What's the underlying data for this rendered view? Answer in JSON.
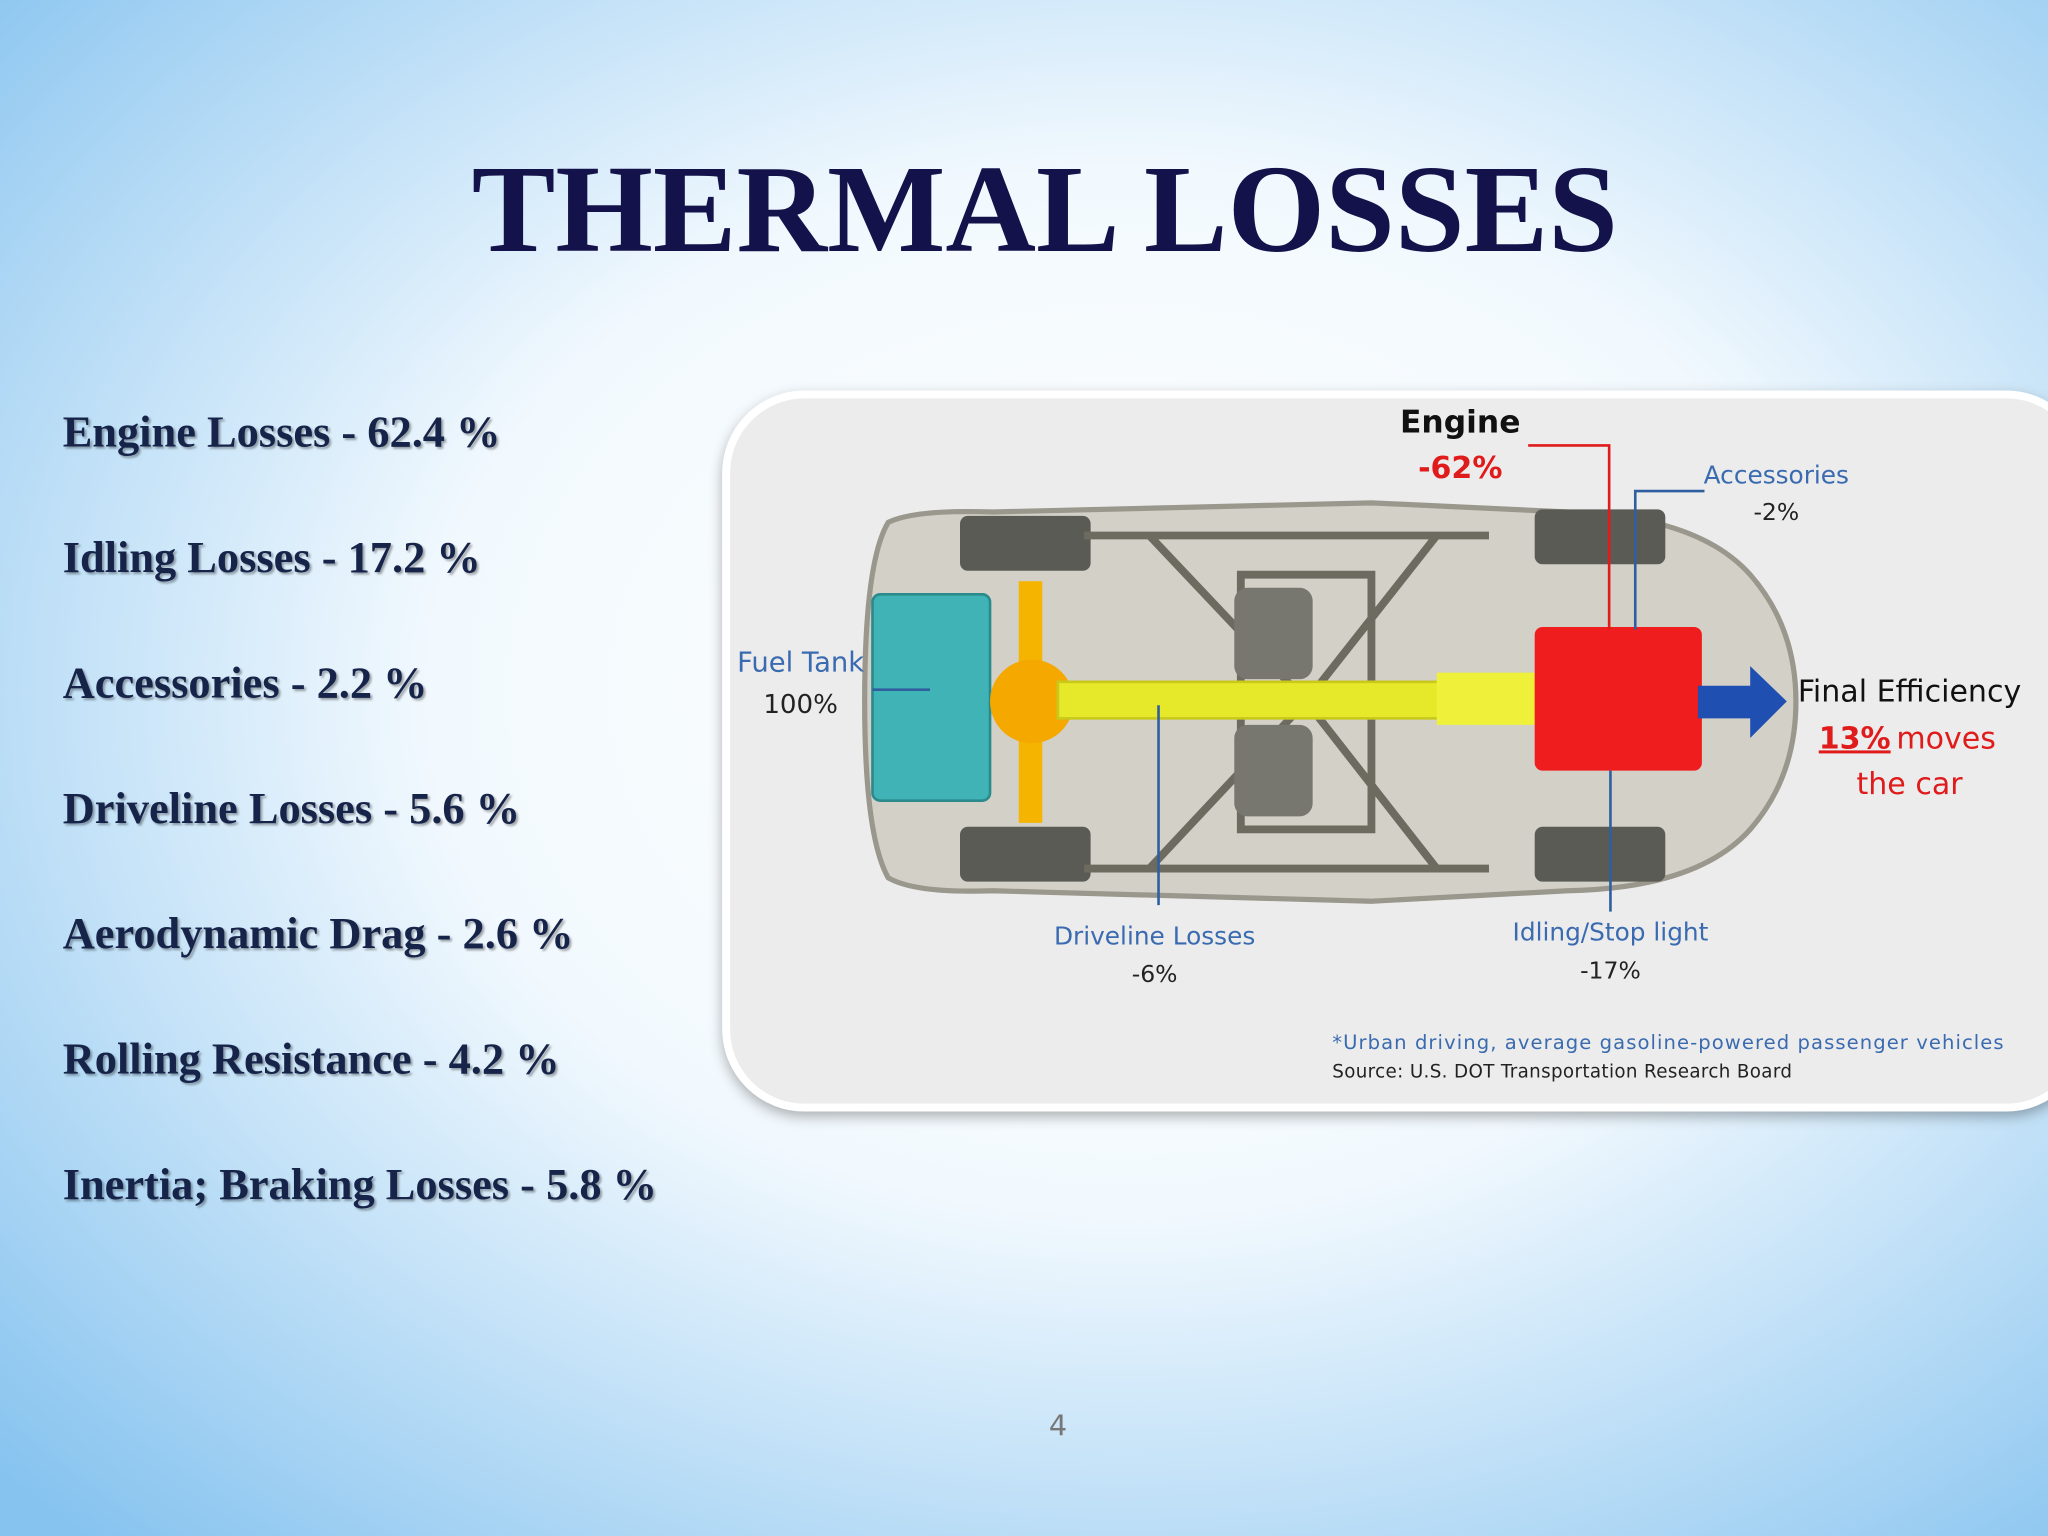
{
  "title": "THERMAL LOSSES",
  "losses": [
    "Engine Losses - 62.4 %",
    "Idling Losses - 17.2 %",
    "Accessories - 2.2 %",
    "Driveline Losses - 5.6 %",
    "Aerodynamic Drag - 2.6 %",
    "Rolling Resistance - 4.2 %",
    "Inertia; Braking Losses - 5.8 %"
  ],
  "diagram": {
    "engine": {
      "label": "Engine",
      "value": "-62%"
    },
    "accessories": {
      "label": "Accessories",
      "value": "-2%"
    },
    "fuel_tank": {
      "label": "Fuel Tank",
      "value": "100%"
    },
    "final_efficiency": {
      "label": "Final Efficiency",
      "value": "13%",
      "text": "moves",
      "text2": "the car"
    },
    "driveline": {
      "label": "Driveline Losses",
      "value": "-6%"
    },
    "idling": {
      "label": "Idling/Stop light",
      "value": "-17%"
    },
    "footnote": "*Urban driving, average gasoline-powered passenger vehicles",
    "source": "Source:  U.S. DOT Transportation Research Board"
  },
  "page_number": "4"
}
